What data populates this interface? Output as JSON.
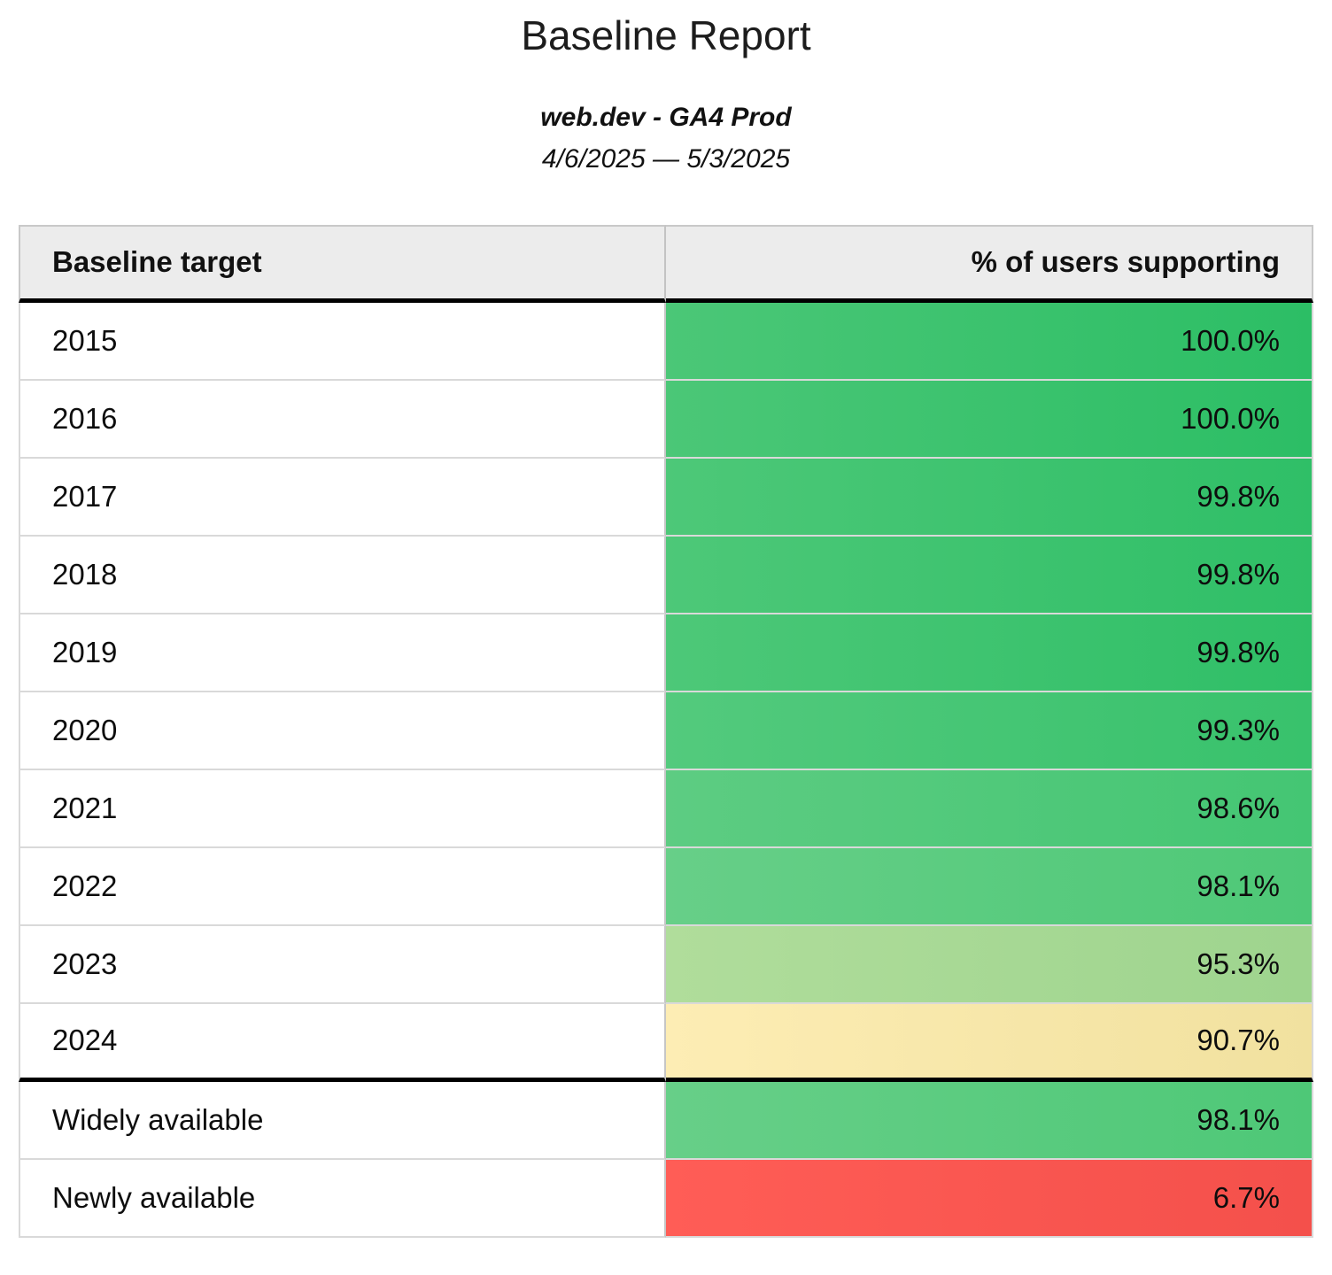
{
  "report": {
    "title": "Baseline Report",
    "subtitle": "web.dev - GA4 Prod",
    "date_range": "4/6/2025 — 5/3/2025"
  },
  "table": {
    "columns": [
      {
        "label": "Baseline target"
      },
      {
        "label": "% of users supporting"
      }
    ],
    "rows": [
      {
        "target": "2015",
        "value": "100.0%",
        "color_left": "#4bc777",
        "color_right": "#2cbe65",
        "section_end": false
      },
      {
        "target": "2016",
        "value": "100.0%",
        "color_left": "#4bc777",
        "color_right": "#2cbe65",
        "section_end": false
      },
      {
        "target": "2017",
        "value": "99.8%",
        "color_left": "#4dc878",
        "color_right": "#2fbf67",
        "section_end": false
      },
      {
        "target": "2018",
        "value": "99.8%",
        "color_left": "#4dc878",
        "color_right": "#2fbf67",
        "section_end": false
      },
      {
        "target": "2019",
        "value": "99.8%",
        "color_left": "#4dc878",
        "color_right": "#2fbf67",
        "section_end": false
      },
      {
        "target": "2020",
        "value": "99.3%",
        "color_left": "#53ca7d",
        "color_right": "#38c26c",
        "section_end": false
      },
      {
        "target": "2021",
        "value": "98.6%",
        "color_left": "#5dcc82",
        "color_right": "#44c673",
        "section_end": false
      },
      {
        "target": "2022",
        "value": "98.1%",
        "color_left": "#67cf88",
        "color_right": "#4ec877",
        "section_end": false
      },
      {
        "target": "2023",
        "value": "95.3%",
        "color_left": "#b0dd9b",
        "color_right": "#9ed48e",
        "section_end": false
      },
      {
        "target": "2024",
        "value": "90.7%",
        "color_left": "#fdedb4",
        "color_right": "#f1e19f",
        "section_end": true
      },
      {
        "target": "Widely available",
        "value": "98.1%",
        "color_left": "#67cf88",
        "color_right": "#4ec877",
        "section_end": false
      },
      {
        "target": "Newly available",
        "value": "6.7%",
        "color_left": "#ff5d56",
        "color_right": "#f4504b",
        "section_end": false
      }
    ]
  },
  "colors": {
    "header_background": "#ececec",
    "header_divider": "#000000",
    "row_divider": "#d9d9d9",
    "scale_high_green": "#2cbe65",
    "scale_mid_yellow": "#f7e6a8",
    "scale_low_red": "#ff5d56",
    "text": "#111111"
  },
  "chart_data": {
    "type": "table",
    "title": "Baseline Report",
    "subtitle": "web.dev - GA4 Prod",
    "date_range": "4/6/2025 — 5/3/2025",
    "columns": [
      "Baseline target",
      "% of users supporting"
    ],
    "rows": [
      [
        "2015",
        100.0
      ],
      [
        "2016",
        100.0
      ],
      [
        "2017",
        99.8
      ],
      [
        "2018",
        99.8
      ],
      [
        "2019",
        99.8
      ],
      [
        "2020",
        99.3
      ],
      [
        "2021",
        98.6
      ],
      [
        "2022",
        98.1
      ],
      [
        "2023",
        95.3
      ],
      [
        "2024",
        90.7
      ],
      [
        "Widely available",
        98.1
      ],
      [
        "Newly available",
        6.7
      ]
    ],
    "value_unit": "percent",
    "layout_hints": {
      "value_column_alignment": "right",
      "conditional_formatting": "red-yellow-green color scale on value column",
      "thick_divider_after_row": "2024"
    }
  }
}
